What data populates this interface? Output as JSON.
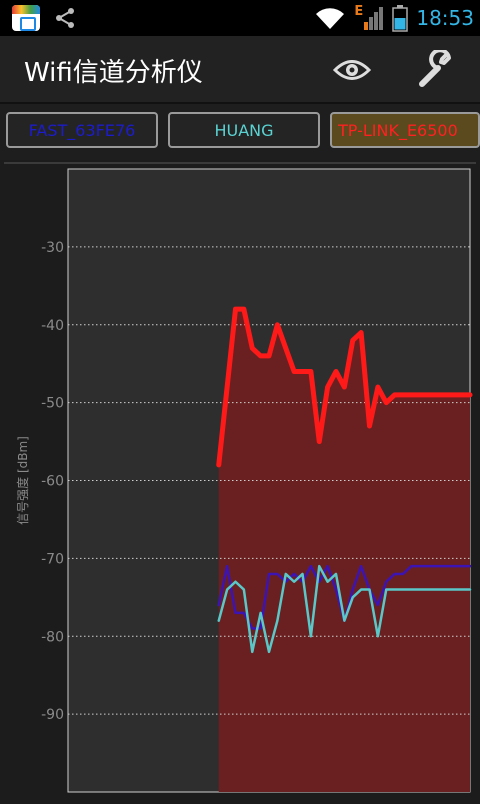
{
  "status_bar": {
    "time": "18:53",
    "icons": [
      "app-icon",
      "share-icon",
      "wifi-icon",
      "mobile-signal-icon",
      "battery-icon"
    ],
    "network_type": "E",
    "accent": "#33b5e5"
  },
  "app_bar": {
    "title": "Wifi信道分析仪",
    "actions": [
      {
        "icon": "eye-icon"
      },
      {
        "icon": "wrench-icon"
      }
    ]
  },
  "network_tabs": [
    {
      "label": "FAST_63FE76",
      "color": "#1c1ccc"
    },
    {
      "label": "HUANG",
      "color": "#5ad2d2"
    },
    {
      "label": "TP-LINK_E6500",
      "color": "#ff2020",
      "background": "#5a4a1e"
    }
  ],
  "chart_data": {
    "type": "line",
    "ylabel": "信号强度 [dBm]",
    "ylim": [
      -100,
      -20
    ],
    "yticks": [
      -30,
      -40,
      -50,
      -60,
      -70,
      -80,
      -90
    ],
    "grid": true,
    "x": [
      0,
      1,
      2,
      3,
      4,
      5,
      6,
      7,
      8,
      9,
      10,
      11,
      12,
      13,
      14,
      15,
      16,
      17,
      18,
      19,
      20,
      21,
      22,
      23,
      24,
      25,
      26,
      27,
      28,
      29,
      30,
      31,
      32,
      33,
      34,
      35,
      36,
      37,
      38,
      39,
      40,
      41,
      42,
      43,
      44,
      45,
      46,
      47,
      48
    ],
    "series": [
      {
        "name": "FAST_63FE76",
        "color": "#3c14b4",
        "values": [
          null,
          null,
          null,
          null,
          null,
          null,
          null,
          null,
          null,
          null,
          null,
          null,
          null,
          null,
          null,
          null,
          null,
          null,
          -76,
          -71,
          -77,
          -77,
          -79,
          -79,
          -72,
          -72,
          -73,
          -72,
          -73,
          -71,
          -73,
          -71,
          -74,
          -78,
          -74,
          -71,
          -74,
          -76,
          -73,
          -72,
          -72,
          -71,
          -71,
          -71,
          -71,
          -71,
          -71,
          -71,
          -71
        ]
      },
      {
        "name": "HUANG",
        "color": "#5ac8c8",
        "values": [
          null,
          null,
          null,
          null,
          null,
          null,
          null,
          null,
          null,
          null,
          null,
          null,
          null,
          null,
          null,
          null,
          null,
          null,
          -78,
          -74,
          -73,
          -74,
          -82,
          -77,
          -82,
          -78,
          -72,
          -73,
          -72,
          -80,
          -71,
          -73,
          -72,
          -78,
          -75,
          -74,
          -74,
          -80,
          -74,
          -74,
          -74,
          -74,
          -74,
          -74,
          -74,
          -74,
          -74,
          -74,
          -74
        ]
      },
      {
        "name": "TP-LINK_E6500",
        "color": "#ff1a1a",
        "values": [
          null,
          null,
          null,
          null,
          null,
          null,
          null,
          null,
          null,
          null,
          null,
          null,
          null,
          null,
          null,
          null,
          null,
          null,
          -58,
          -48,
          -38,
          -38,
          -43,
          -44,
          -44,
          -40,
          -43,
          -46,
          -46,
          -46,
          -55,
          -48,
          -46,
          -48,
          -42,
          -41,
          -53,
          -48,
          -50,
          -49,
          -49,
          -49,
          -49,
          -49,
          -49,
          -49,
          -49,
          -49,
          -49
        ]
      }
    ],
    "fill_series": "TP-LINK_E6500",
    "fill_color": "#6a2020"
  }
}
